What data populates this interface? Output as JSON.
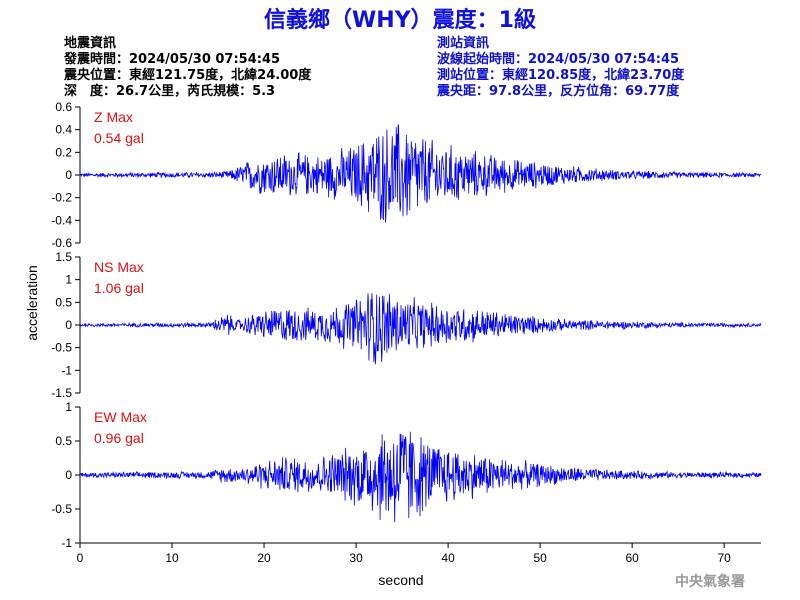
{
  "title": "信義鄉（WHY）震度：1級",
  "quake_info": {
    "heading": "地震資訊",
    "time": "發震時間：2024/05/30 07:54:45",
    "location": "震央位置：東經121.75度，北緯24.00度",
    "depth": "深　度：26.7公里，芮氏規模：5.3"
  },
  "station_info": {
    "heading": "測站資訊",
    "wave_time": "波線起始時間：2024/05/30 07:54:45",
    "location": "測站位置：東經120.85度，北緯23.70度",
    "distance": "震央距：97.8公里，反方位角：69.77度"
  },
  "credit": "中央氣象署",
  "colors": {
    "title": "#1010e0",
    "trace": "#0000ff",
    "max_label": "#e01010",
    "station_info": "#1010d0"
  },
  "chart_data": {
    "type": "line",
    "xlabel": "second",
    "ylabel": "acceleration",
    "xlim": [
      0,
      74
    ],
    "xticks": [
      "0",
      "10",
      "20",
      "30",
      "40",
      "50",
      "60",
      "70"
    ],
    "panels": [
      {
        "component": "Z",
        "max_title": "Z Max",
        "max_value": "0.54 gal",
        "ylim": [
          -0.6,
          0.6
        ],
        "yticks": [
          "0.6",
          "0.4",
          "0.2",
          "0",
          "-0.2",
          "-0.4",
          "-0.6"
        ],
        "envelope": [
          [
            0,
            0.02
          ],
          [
            15,
            0.03
          ],
          [
            16.5,
            0.05
          ],
          [
            19,
            0.18
          ],
          [
            22,
            0.22
          ],
          [
            26,
            0.2
          ],
          [
            30,
            0.3
          ],
          [
            32,
            0.45
          ],
          [
            35,
            0.54
          ],
          [
            38,
            0.35
          ],
          [
            42,
            0.25
          ],
          [
            47,
            0.16
          ],
          [
            52,
            0.1
          ],
          [
            58,
            0.05
          ],
          [
            65,
            0.03
          ],
          [
            74,
            0.02
          ]
        ]
      },
      {
        "component": "NS",
        "max_title": "NS Max",
        "max_value": "1.06 gal",
        "ylim": [
          -1.5,
          1.5
        ],
        "yticks": [
          "1.5",
          "1",
          "0.5",
          "0",
          "-0.5",
          "-1",
          "-1.5"
        ],
        "envelope": [
          [
            0,
            0.04
          ],
          [
            14,
            0.06
          ],
          [
            16,
            0.3
          ],
          [
            17,
            0.12
          ],
          [
            19,
            0.3
          ],
          [
            22,
            0.45
          ],
          [
            26,
            0.4
          ],
          [
            30,
            0.65
          ],
          [
            32,
            1.06
          ],
          [
            35,
            0.7
          ],
          [
            38,
            0.55
          ],
          [
            42,
            0.45
          ],
          [
            47,
            0.28
          ],
          [
            52,
            0.15
          ],
          [
            58,
            0.1
          ],
          [
            65,
            0.06
          ],
          [
            74,
            0.04
          ]
        ]
      },
      {
        "component": "EW",
        "max_title": "EW Max",
        "max_value": "0.96 gal",
        "ylim": [
          -1.0,
          1.0
        ],
        "yticks": [
          "1",
          "0.5",
          "0",
          "-0.5",
          "-1"
        ],
        "envelope": [
          [
            0,
            0.04
          ],
          [
            14,
            0.06
          ],
          [
            16,
            0.15
          ],
          [
            17,
            0.1
          ],
          [
            19,
            0.2
          ],
          [
            22,
            0.3
          ],
          [
            26,
            0.3
          ],
          [
            30,
            0.5
          ],
          [
            33,
            0.8
          ],
          [
            35,
            0.96
          ],
          [
            38,
            0.55
          ],
          [
            42,
            0.4
          ],
          [
            47,
            0.25
          ],
          [
            52,
            0.15
          ],
          [
            58,
            0.08
          ],
          [
            65,
            0.05
          ],
          [
            74,
            0.04
          ]
        ]
      }
    ]
  }
}
